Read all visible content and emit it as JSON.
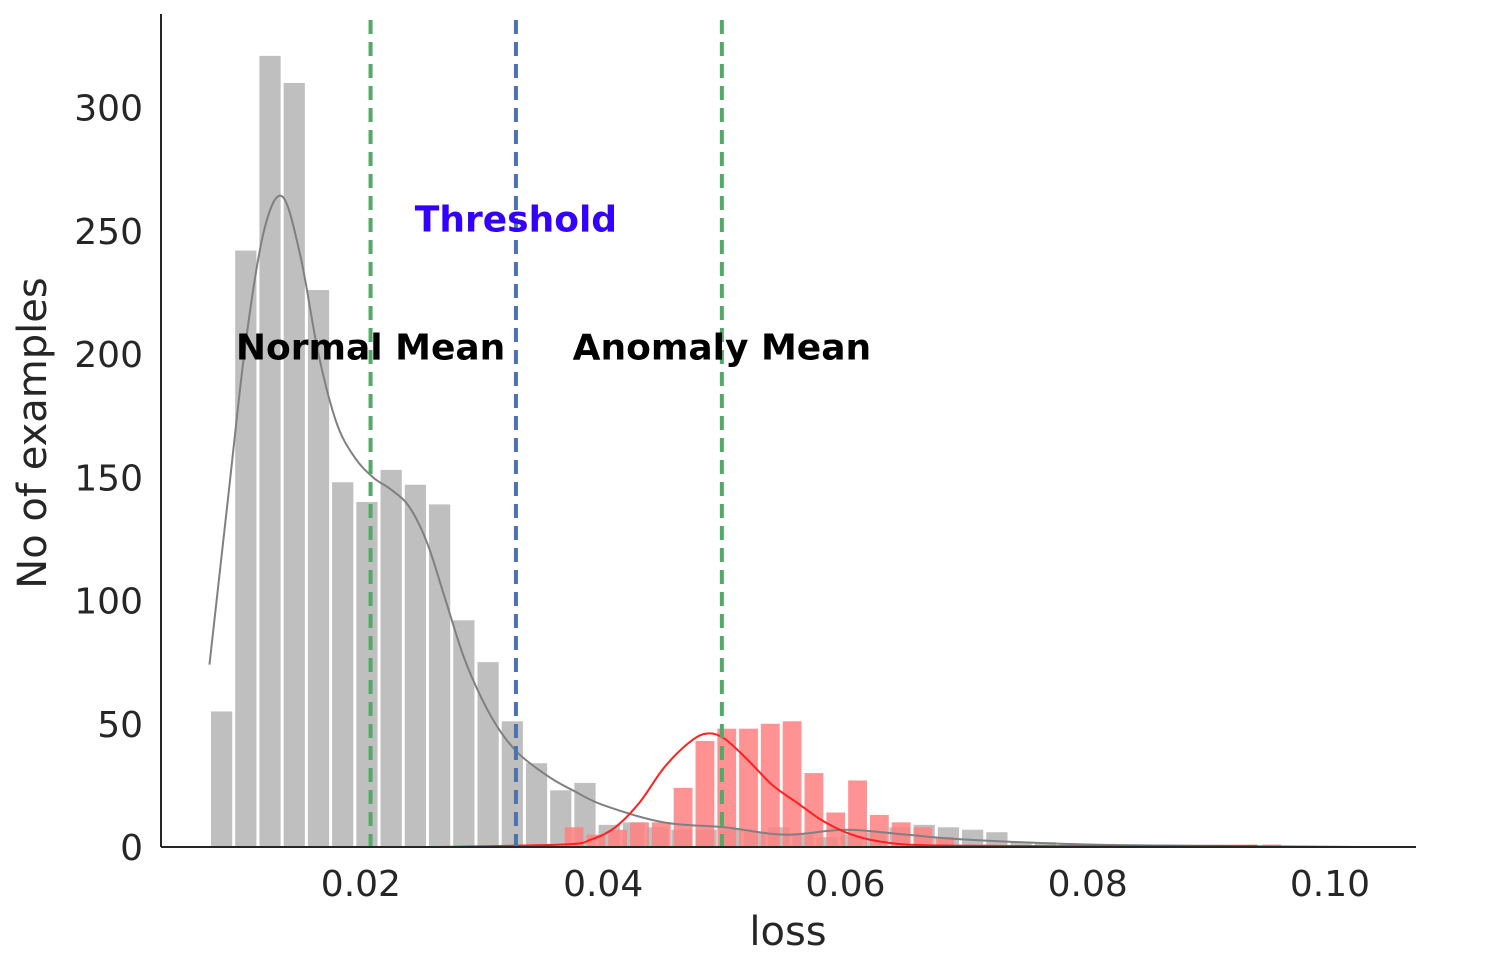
{
  "chart_data": {
    "type": "bar",
    "xlabel": "loss",
    "ylabel": "No of examples",
    "xlim": [
      0.0035,
      0.1071
    ],
    "ylim": [
      0,
      338
    ],
    "xticks": [
      0.02,
      0.04,
      0.06,
      0.08,
      0.1
    ],
    "xtick_labels": [
      "0.02",
      "0.04",
      "0.06",
      "0.08",
      "0.10"
    ],
    "yticks": [
      0,
      50,
      100,
      150,
      200,
      250,
      300
    ],
    "ytick_labels": [
      "0",
      "50",
      "100",
      "150",
      "200",
      "250",
      "300"
    ],
    "grid": false,
    "colors": {
      "normal": "#bfbfbf",
      "anomaly": "#ff7f7f",
      "normal_kde": "#808080",
      "anomaly_kde": "#ff2020",
      "mean_lines": "#55a868",
      "threshold_line": "#4c72b0",
      "threshold_text": "#3300ff",
      "mean_text": "#000000"
    },
    "series": [
      {
        "bin_start": 0.0075,
        "bin_width": 0.002,
        "values": [
          55,
          242,
          321,
          310,
          226,
          148,
          140,
          153,
          147,
          139,
          92,
          75,
          51,
          34,
          23,
          26,
          9,
          10,
          8,
          7,
          7,
          7,
          6,
          8,
          5,
          4,
          5,
          6,
          8,
          9,
          8,
          7,
          6,
          2,
          2,
          1,
          1,
          1,
          0,
          0,
          0,
          0,
          0,
          0,
          0,
          0,
          0,
          0,
          0,
          0
        ]
      },
      {
        "bin_start": 0.0367,
        "bin_width": 0.0018,
        "values": [
          8,
          5,
          7,
          10,
          10,
          24,
          43,
          48,
          48,
          50,
          51,
          30,
          14,
          27,
          13,
          10,
          8,
          4,
          1,
          1,
          0,
          0,
          0,
          1,
          1,
          0,
          0,
          0,
          0,
          0,
          0,
          0,
          1
        ]
      }
    ],
    "kde": [
      {
        "x": [
          0.0075,
          0.009,
          0.0105,
          0.012,
          0.0135,
          0.015,
          0.0165,
          0.018,
          0.0195,
          0.021,
          0.0225,
          0.024,
          0.0255,
          0.027,
          0.0285,
          0.03,
          0.0315,
          0.033,
          0.0345,
          0.036,
          0.0375,
          0.04,
          0.045,
          0.05,
          0.055,
          0.06,
          0.065,
          0.07,
          0.08,
          0.09,
          0.1025
        ],
        "y": [
          74,
          140,
          205,
          250,
          264,
          240,
          200,
          172,
          158,
          150,
          145,
          138,
          123,
          100,
          77,
          60,
          47,
          38,
          32,
          27,
          23,
          17,
          10,
          8,
          5,
          7,
          5,
          3,
          1,
          0.5,
          0
        ]
      },
      {
        "x": [
          0.026,
          0.0367,
          0.039,
          0.041,
          0.043,
          0.045,
          0.047,
          0.0485,
          0.05,
          0.052,
          0.054,
          0.056,
          0.058,
          0.06,
          0.062,
          0.065,
          0.07,
          0.08,
          0.094
        ],
        "y": [
          0,
          1,
          3,
          8,
          18,
          32,
          42,
          46,
          44,
          35,
          25,
          18,
          11,
          6,
          3,
          1,
          0.5,
          0.3,
          0.5
        ]
      }
    ],
    "vlines": [
      {
        "x": 0.0208,
        "style": "dashed",
        "color": "#55a868"
      },
      {
        "x": 0.0328,
        "style": "dashed",
        "color": "#4c72b0"
      },
      {
        "x": 0.0498,
        "style": "dashed",
        "color": "#55a868"
      }
    ],
    "annotations": [
      {
        "text": "Threshold",
        "x": 0.0328,
        "y": 255,
        "color": "#3300ff"
      },
      {
        "text": "Normal Mean",
        "x": 0.0208,
        "y": 203,
        "color": "#000000"
      },
      {
        "text": "Anomaly Mean",
        "x": 0.0498,
        "y": 203,
        "color": "#000000"
      }
    ]
  }
}
